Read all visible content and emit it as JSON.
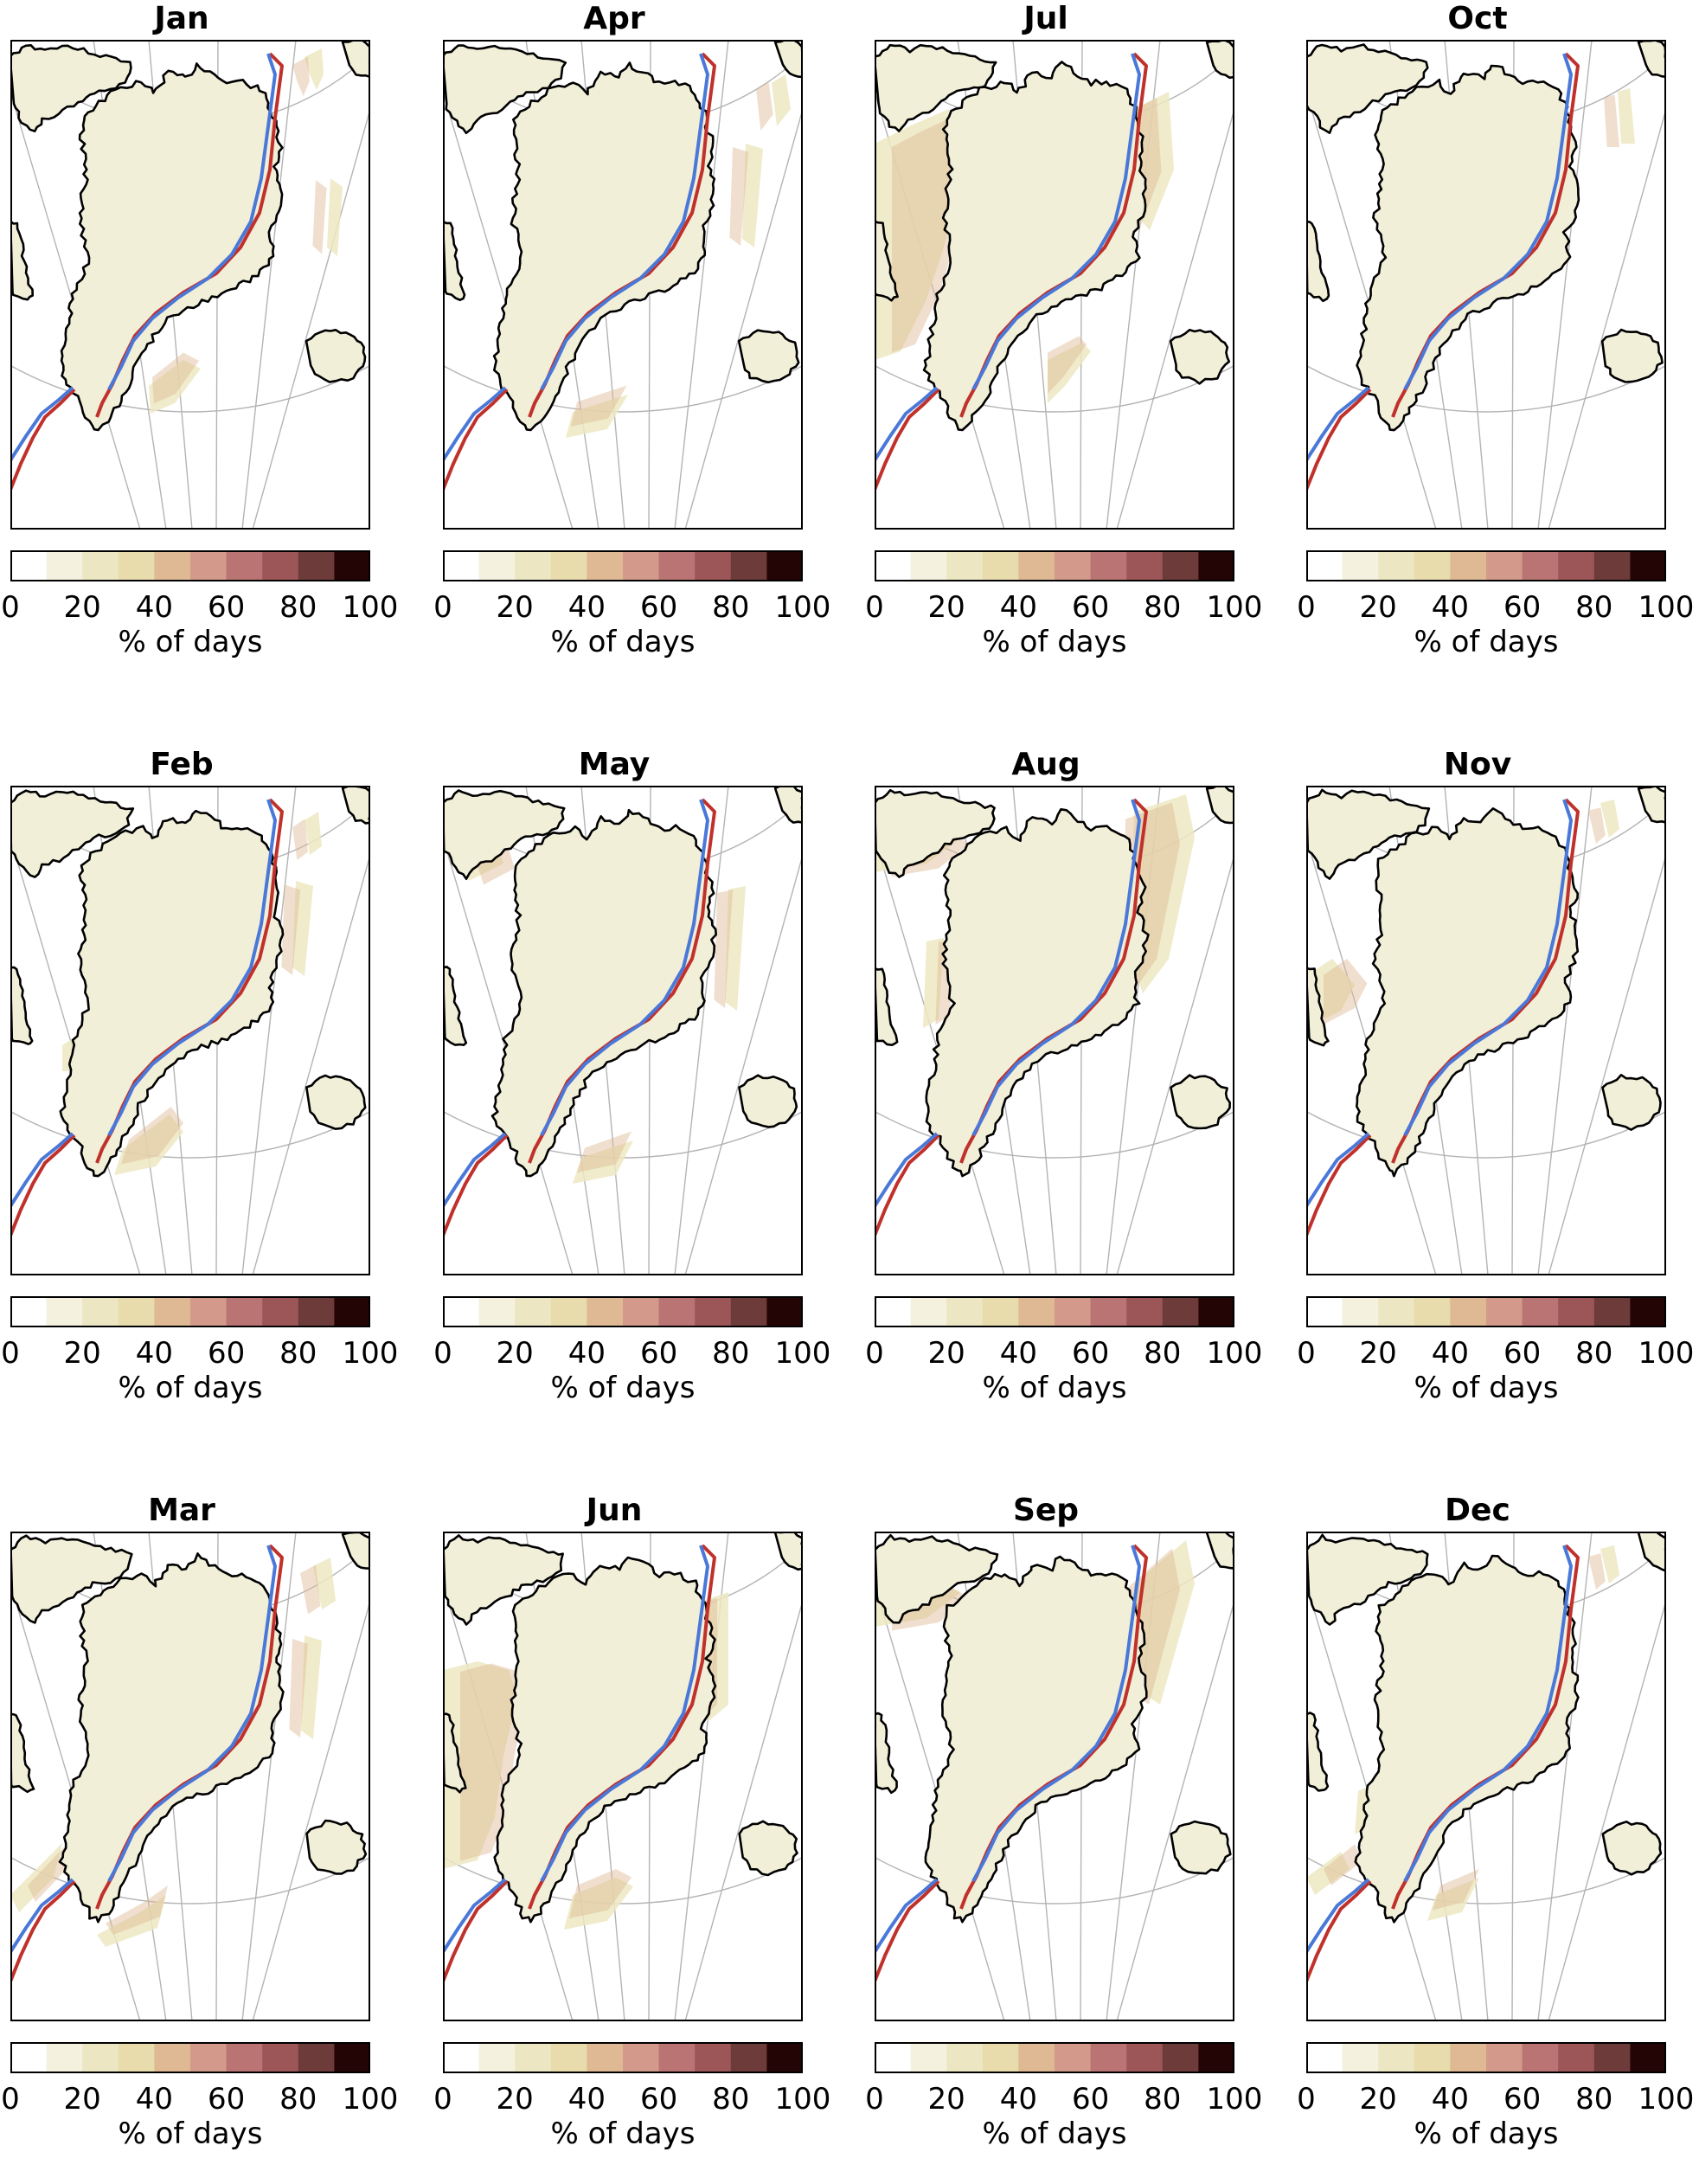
{
  "figure": {
    "panels": [
      {
        "title": "Jan"
      },
      {
        "title": "Apr"
      },
      {
        "title": "Jul"
      },
      {
        "title": "Oct"
      },
      {
        "title": "Feb"
      },
      {
        "title": "May"
      },
      {
        "title": "Aug"
      },
      {
        "title": "Nov"
      },
      {
        "title": "Mar"
      },
      {
        "title": "Jun"
      },
      {
        "title": "Sep"
      },
      {
        "title": "Dec"
      }
    ],
    "colorbar": {
      "label": "% of days",
      "tick_labels": [
        "0",
        "20",
        "40",
        "60",
        "80",
        "100"
      ],
      "tick_values": [
        0,
        20,
        40,
        60,
        80,
        100
      ],
      "range": [
        0,
        100
      ],
      "level_step": 10,
      "colors": [
        "#ffffff",
        "#f4f1de",
        "#ece7c2",
        "#e8dbac",
        "#deb993",
        "#d3998a",
        "#b97473",
        "#9c5658",
        "#6e3b3b",
        "#240505"
      ]
    },
    "map_colors": {
      "land": "#f2efd9",
      "coastline": "#000000",
      "graticule": "#b4b4b4",
      "contour_red": "#c0312b",
      "contour_blue": "#4a78d8"
    }
  },
  "chart_data": {
    "type": "heatmap",
    "layout": "grid 3 rows x 4 columns of polar-stereographic maps of Greenland",
    "panel_order": [
      "Jan",
      "Apr",
      "Jul",
      "Oct",
      "Feb",
      "May",
      "Aug",
      "Nov",
      "Mar",
      "Jun",
      "Sep",
      "Dec"
    ],
    "value_label": "% of days",
    "value_range": [
      0,
      100
    ],
    "contour_lines": [
      "red",
      "blue"
    ],
    "grid": true,
    "legend_placement": "colorbar below each panel"
  }
}
